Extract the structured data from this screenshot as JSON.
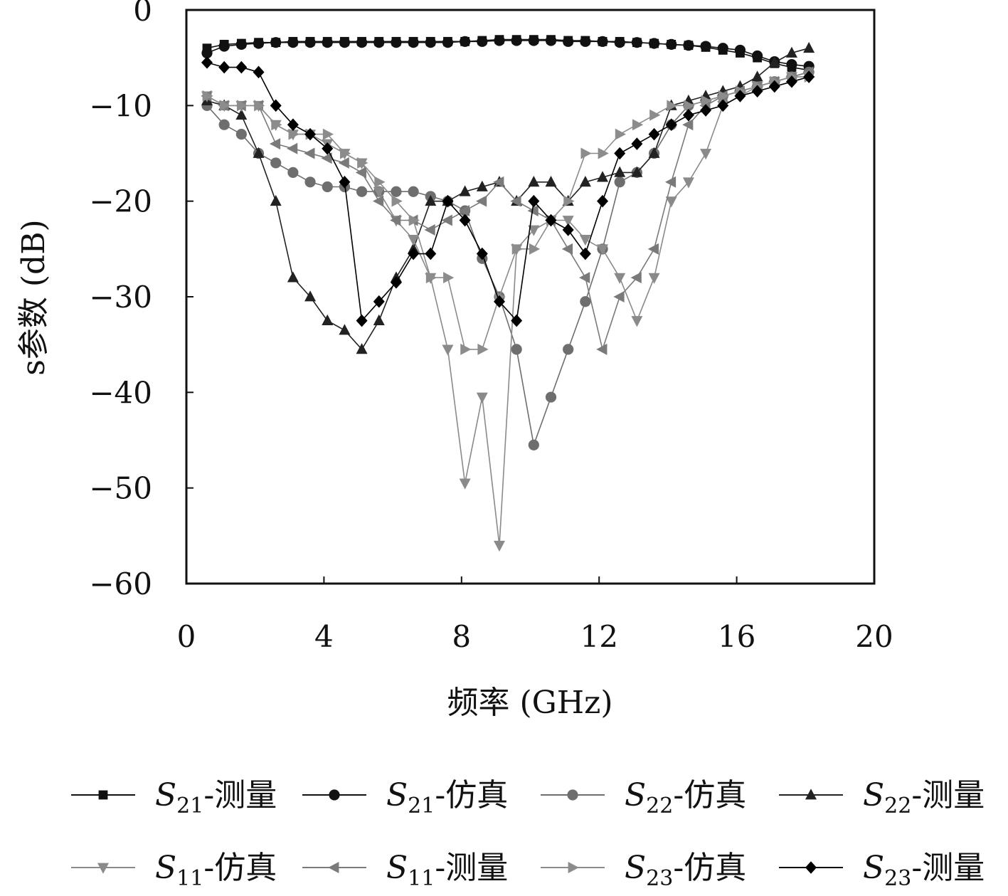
{
  "chart_data": {
    "type": "line",
    "title": "",
    "xlabel": "频率 (GHz)",
    "ylabel": "s参数 (dB)",
    "xlim": [
      0,
      20
    ],
    "ylim": [
      -60,
      0
    ],
    "x_ticks": [
      "0",
      "4",
      "8",
      "12",
      "16",
      "20"
    ],
    "y_ticks": [
      "0",
      "−10",
      "−20",
      "−30",
      "−40",
      "−50",
      "−60"
    ],
    "grid": false,
    "legend_position": "bottom",
    "series": [
      {
        "name": "S21-测量",
        "legend_main": "S",
        "legend_sub": "21",
        "legend_suffix": "-测量",
        "marker": "square",
        "color": "#111111",
        "x": [
          0.6,
          1.1,
          1.6,
          2.1,
          2.6,
          3.1,
          3.6,
          4.1,
          4.6,
          5.1,
          5.6,
          6.1,
          6.6,
          7.1,
          7.6,
          8.1,
          8.6,
          9.1,
          9.6,
          10.1,
          10.6,
          11.1,
          11.6,
          12.1,
          12.6,
          13.1,
          13.6,
          14.1,
          14.6,
          15.1,
          15.6,
          16.1,
          16.6,
          17.1,
          17.6,
          18.1
        ],
        "y": [
          -4.0,
          -3.6,
          -3.5,
          -3.4,
          -3.4,
          -3.3,
          -3.3,
          -3.3,
          -3.3,
          -3.3,
          -3.3,
          -3.3,
          -3.3,
          -3.3,
          -3.3,
          -3.3,
          -3.2,
          -3.1,
          -3.1,
          -3.1,
          -3.1,
          -3.2,
          -3.2,
          -3.3,
          -3.3,
          -3.4,
          -3.5,
          -3.6,
          -3.7,
          -3.9,
          -4.2,
          -4.5,
          -5.0,
          -5.6,
          -6.0,
          -6.3
        ]
      },
      {
        "name": "S21-仿真",
        "legend_main": "S",
        "legend_sub": "21",
        "legend_suffix": "-仿真",
        "marker": "circle",
        "color": "#111111",
        "x": [
          0.6,
          1.1,
          1.6,
          2.1,
          2.6,
          3.1,
          3.6,
          4.1,
          4.6,
          5.1,
          5.6,
          6.1,
          6.6,
          7.1,
          7.6,
          8.1,
          8.6,
          9.1,
          9.6,
          10.1,
          10.6,
          11.1,
          11.6,
          12.1,
          12.6,
          13.1,
          13.6,
          14.1,
          14.6,
          15.1,
          15.6,
          16.1,
          16.6,
          17.1,
          17.6,
          18.1
        ],
        "y": [
          -4.5,
          -3.8,
          -3.6,
          -3.5,
          -3.4,
          -3.4,
          -3.4,
          -3.4,
          -3.4,
          -3.4,
          -3.4,
          -3.4,
          -3.4,
          -3.4,
          -3.4,
          -3.3,
          -3.3,
          -3.2,
          -3.2,
          -3.2,
          -3.2,
          -3.3,
          -3.3,
          -3.3,
          -3.4,
          -3.4,
          -3.5,
          -3.6,
          -3.7,
          -3.8,
          -4.0,
          -4.2,
          -4.8,
          -5.4,
          -5.7,
          -5.9
        ]
      },
      {
        "name": "S22-仿真",
        "legend_main": "S",
        "legend_sub": "22",
        "legend_suffix": "-仿真",
        "marker": "circle",
        "color": "#6e6e6e",
        "x": [
          0.6,
          1.1,
          1.6,
          2.1,
          2.6,
          3.1,
          3.6,
          4.1,
          4.6,
          5.1,
          5.6,
          6.1,
          6.6,
          7.1,
          7.6,
          8.1,
          8.6,
          9.1,
          9.6,
          10.1,
          10.6,
          11.1,
          11.6,
          12.1,
          12.6,
          13.1,
          13.6,
          14.1,
          14.6,
          15.1,
          15.6,
          16.1,
          16.6,
          17.1,
          17.6,
          18.1
        ],
        "y": [
          -10.0,
          -12.0,
          -13.0,
          -15.0,
          -16.0,
          -17.0,
          -18.0,
          -18.5,
          -18.5,
          -19.0,
          -19.0,
          -19.0,
          -19.0,
          -19.5,
          -20.0,
          -21.0,
          -26.0,
          -30.0,
          -35.5,
          -45.5,
          -40.5,
          -35.5,
          -30.5,
          -25.0,
          -18.0,
          -17.0,
          -15.0,
          -12.0,
          -10.0,
          -9.5,
          -9.0,
          -8.5,
          -8.0,
          -7.5,
          -7.0,
          -6.5
        ]
      },
      {
        "name": "S22-测量",
        "legend_main": "S",
        "legend_sub": "22",
        "legend_suffix": "-测量",
        "marker": "triangle-up",
        "color": "#222222",
        "x": [
          0.6,
          1.1,
          1.6,
          2.1,
          2.6,
          3.1,
          3.6,
          4.1,
          4.6,
          5.1,
          5.6,
          6.1,
          6.6,
          7.1,
          7.6,
          8.1,
          8.6,
          9.1,
          9.6,
          10.1,
          10.6,
          11.1,
          11.6,
          12.1,
          12.6,
          13.1,
          13.6,
          14.1,
          14.6,
          15.1,
          15.6,
          16.1,
          16.6,
          17.1,
          17.6,
          18.1
        ],
        "y": [
          -9.5,
          -10.0,
          -11.0,
          -15.0,
          -20.0,
          -28.0,
          -30.0,
          -32.5,
          -33.5,
          -35.5,
          -32.5,
          -28.0,
          -25.0,
          -20.0,
          -20.0,
          -19.0,
          -18.5,
          -18.0,
          -20.0,
          -18.0,
          -18.0,
          -20.0,
          -18.0,
          -17.5,
          -17.0,
          -17.0,
          -15.0,
          -10.0,
          -9.5,
          -9.0,
          -8.5,
          -8.0,
          -7.0,
          -5.5,
          -4.5,
          -4.0
        ]
      },
      {
        "name": "S11-仿真",
        "legend_main": "S",
        "legend_sub": "11",
        "legend_suffix": "-仿真",
        "marker": "triangle-down",
        "color": "#8a8a8a",
        "x": [
          0.6,
          1.1,
          1.6,
          2.1,
          2.6,
          3.1,
          3.6,
          4.1,
          4.6,
          5.1,
          5.6,
          6.1,
          6.6,
          7.1,
          7.6,
          8.1,
          8.6,
          9.1,
          9.6,
          10.1,
          10.6,
          11.1,
          11.6,
          12.1,
          12.6,
          13.1,
          13.6,
          14.1,
          14.6,
          15.1,
          15.6,
          16.1,
          16.6,
          17.1,
          17.6,
          18.1
        ],
        "y": [
          -9.0,
          -10.0,
          -10.0,
          -10.0,
          -12.0,
          -13.0,
          -13.0,
          -14.0,
          -15.0,
          -16.0,
          -19.0,
          -22.0,
          -24.0,
          -28.0,
          -35.5,
          -49.5,
          -40.5,
          -56.0,
          -25.0,
          -23.0,
          -22.0,
          -22.0,
          -24.0,
          -25.0,
          -28.0,
          -32.5,
          -28.0,
          -20.0,
          -18.0,
          -15.0,
          -10.0,
          -9.0,
          -8.0,
          -7.5,
          -7.0,
          -7.0
        ]
      },
      {
        "name": "S11-测量",
        "legend_main": "S",
        "legend_sub": "11",
        "legend_suffix": "-测量",
        "marker": "triangle-left",
        "color": "#7a7a7a",
        "x": [
          0.6,
          1.1,
          1.6,
          2.1,
          2.6,
          3.1,
          3.6,
          4.1,
          4.6,
          5.1,
          5.6,
          6.1,
          6.6,
          7.1,
          7.6,
          8.1,
          8.6,
          9.1,
          9.6,
          10.1,
          10.6,
          11.1,
          11.6,
          12.1,
          12.6,
          13.1,
          13.6,
          14.1,
          14.6,
          15.1,
          15.6,
          16.1,
          16.6,
          17.1,
          17.6,
          18.1
        ],
        "y": [
          -9.0,
          -10.0,
          -10.0,
          -10.0,
          -14.0,
          -14.5,
          -15.0,
          -15.5,
          -16.0,
          -17.0,
          -20.0,
          -22.0,
          -22.0,
          -23.0,
          -22.0,
          -21.0,
          -20.0,
          -18.0,
          -20.0,
          -21.0,
          -22.0,
          -25.0,
          -28.0,
          -35.5,
          -30.0,
          -28.0,
          -25.0,
          -18.0,
          -12.0,
          -10.0,
          -9.0,
          -8.5,
          -8.0,
          -7.5,
          -7.0,
          -6.5
        ]
      },
      {
        "name": "S23-仿真",
        "legend_main": "S",
        "legend_sub": "23",
        "legend_suffix": "-仿真",
        "marker": "triangle-right",
        "color": "#8c8c8c",
        "x": [
          0.6,
          1.1,
          1.6,
          2.1,
          2.6,
          3.1,
          3.6,
          4.1,
          4.6,
          5.1,
          5.6,
          6.1,
          6.6,
          7.1,
          7.6,
          8.1,
          8.6,
          9.1,
          9.6,
          10.1,
          10.6,
          11.1,
          11.6,
          12.1,
          12.6,
          13.1,
          13.6,
          14.1,
          14.6,
          15.1,
          15.6,
          16.1,
          16.6,
          17.1,
          17.6,
          18.1
        ],
        "y": [
          -9.0,
          -10.0,
          -10.0,
          -10.0,
          -12.0,
          -13.0,
          -13.0,
          -13.0,
          -15.0,
          -16.0,
          -18.0,
          -20.0,
          -22.0,
          -28.0,
          -28.0,
          -35.5,
          -35.5,
          -30.0,
          -25.0,
          -25.0,
          -22.0,
          -20.0,
          -15.0,
          -15.0,
          -13.0,
          -12.0,
          -11.0,
          -10.0,
          -10.0,
          -9.5,
          -9.0,
          -8.5,
          -8.0,
          -7.5,
          -7.0,
          -7.0
        ]
      },
      {
        "name": "S23-测量",
        "legend_main": "S",
        "legend_sub": "23",
        "legend_suffix": "-测量",
        "marker": "diamond",
        "color": "#000000",
        "x": [
          0.6,
          1.1,
          1.6,
          2.1,
          2.6,
          3.1,
          3.6,
          4.1,
          4.6,
          5.1,
          5.6,
          6.1,
          6.6,
          7.1,
          7.6,
          8.1,
          8.6,
          9.1,
          9.6,
          10.1,
          10.6,
          11.1,
          11.6,
          12.1,
          12.6,
          13.1,
          13.6,
          14.1,
          14.6,
          15.1,
          15.6,
          16.1,
          16.6,
          17.1,
          17.6,
          18.1
        ],
        "y": [
          -5.5,
          -6.0,
          -6.0,
          -6.5,
          -10.0,
          -12.0,
          -13.0,
          -14.5,
          -18.0,
          -32.5,
          -30.5,
          -28.5,
          -25.5,
          -25.5,
          -20.0,
          -22.0,
          -25.5,
          -30.5,
          -32.5,
          -20.0,
          -22.0,
          -23.0,
          -25.5,
          -20.0,
          -15.0,
          -14.0,
          -13.0,
          -12.0,
          -11.0,
          -10.5,
          -10.0,
          -9.0,
          -8.5,
          -8.0,
          -7.5,
          -7.0
        ]
      }
    ]
  }
}
